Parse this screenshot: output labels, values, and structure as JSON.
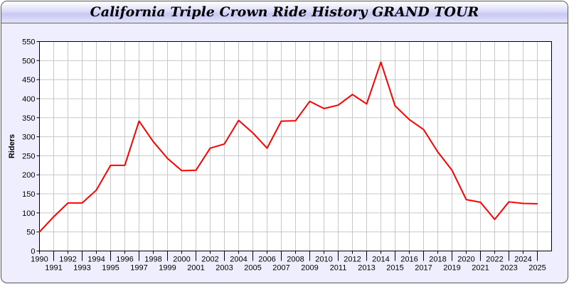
{
  "chart_data": {
    "type": "line",
    "title": "California Triple Crown Ride History GRAND TOUR",
    "xlabel": "",
    "ylabel": "Riders",
    "ylim": [
      0,
      550
    ],
    "yticks": [
      0,
      50,
      100,
      150,
      200,
      250,
      300,
      350,
      400,
      450,
      500,
      550
    ],
    "grid": true,
    "line_color": "#ff0000",
    "categories": [
      "1990",
      "1991",
      "1992",
      "1993",
      "1994",
      "1995",
      "1996",
      "1997",
      "1998",
      "1999",
      "2000",
      "2001",
      "2002",
      "2003",
      "2004",
      "2005",
      "2006",
      "2007",
      "2008",
      "2009",
      "2010",
      "2011",
      "2012",
      "2013",
      "2014",
      "2015",
      "2016",
      "2017",
      "2018",
      "2019",
      "2020",
      "2021",
      "2022",
      "2023",
      "2024",
      "2025"
    ],
    "values": [
      50,
      90,
      126,
      126,
      160,
      225,
      225,
      341,
      287,
      243,
      211,
      212,
      270,
      281,
      343,
      310,
      270,
      341,
      342,
      393,
      374,
      383,
      411,
      386,
      496,
      381,
      345,
      319,
      260,
      212,
      135,
      128,
      83,
      129,
      125,
      124
    ]
  }
}
